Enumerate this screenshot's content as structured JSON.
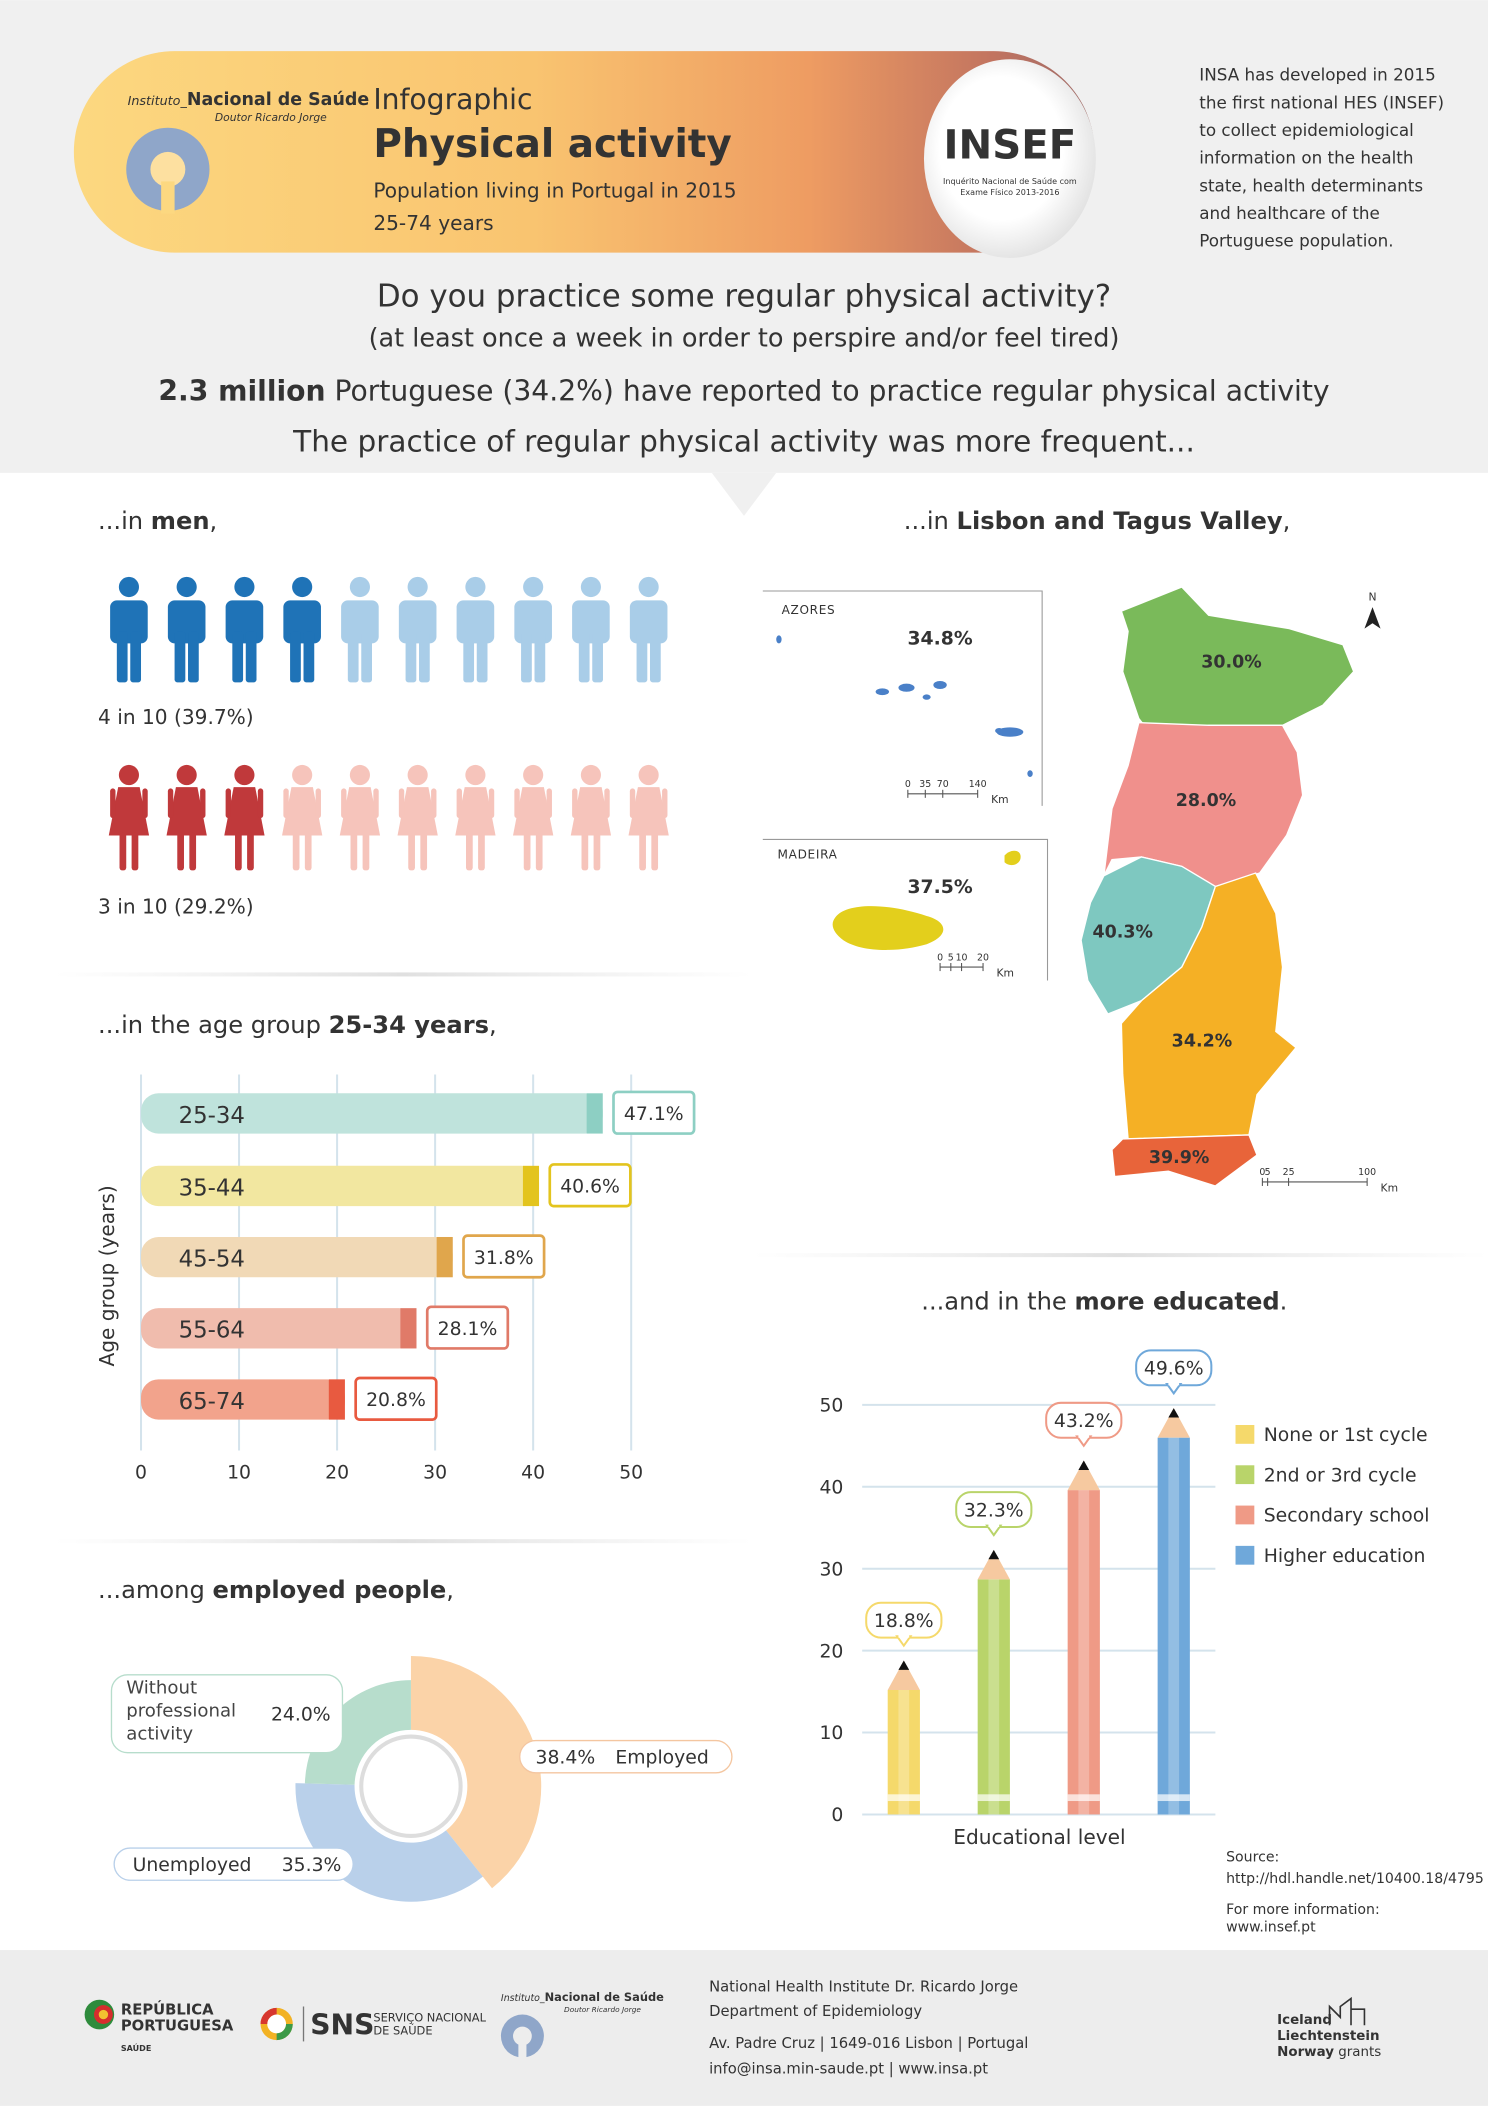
{
  "header": {
    "institute_prefix": "Instituto_",
    "institute_name": "Nacional de Saúde",
    "institute_sub": "Doutor Ricardo Jorge",
    "kicker": "Infographic",
    "title": "Physical activity",
    "subtitle_lines": [
      "Population living in Portugal in 2015",
      "25-74 years"
    ],
    "insef_logo": "INSEF",
    "insef_caption_lines": [
      "Inquérito Nacional de Saúde com",
      "Exame Físico 2013-2016"
    ],
    "side_note_lines": [
      "INSA has developed in 2015",
      "the first national HES (INSEF)",
      "to collect epidemiological",
      "information on the health",
      "state, health determinants",
      "and healthcare of the",
      "Portuguese population."
    ]
  },
  "question": {
    "title": "Do you practice some regular physical activity?",
    "subtitle": "(at least once a week in order to perspire and/or feel tired)",
    "result_bold": "2.3 million",
    "result_rest": "Portuguese (34.2%) have reported to practice regular physical activity",
    "lead": "The practice of regular physical activity was more frequent..."
  },
  "chart_data": [
    {
      "type": "pictogram",
      "heading": {
        "pre": "...in",
        "bold": "men",
        "post": ","
      },
      "rows": [
        {
          "icon": "man",
          "filled": 4,
          "total": 10,
          "percent": 39.7,
          "value_label": "4 in 10 (39.7%)",
          "color": "#1f73b7",
          "light_color": "#a9cde8"
        },
        {
          "icon": "woman",
          "filled": 3,
          "total": 10,
          "percent": 29.2,
          "value_label": "3 in 10 (29.2%)",
          "color": "#c0393b",
          "light_color": "#f6c4bb"
        }
      ]
    },
    {
      "type": "map",
      "heading": {
        "pre": "...in",
        "bold": "Lisbon and Tagus Valley",
        "post": ","
      },
      "insets": [
        {
          "name": "AZORES",
          "value": 34.8,
          "value_label": "34.8%",
          "color": "#4a80c8",
          "scale_ticks": [
            0,
            35,
            70,
            140
          ]
        },
        {
          "name": "MADEIRA",
          "value": 37.5,
          "value_label": "37.5%",
          "color": "#e3cf1c",
          "scale_ticks": [
            0,
            5,
            10,
            20
          ]
        }
      ],
      "mainland": [
        {
          "value": 30,
          "value_label": "30.0%",
          "color": "#7aba5a"
        },
        {
          "value": 28,
          "value_label": "28.0%",
          "color": "#f0908c"
        },
        {
          "value": 40.3,
          "value_label": "40.3%",
          "color": "#7ec8c0"
        },
        {
          "value": 34.2,
          "value_label": "34.2%",
          "color": "#f5b025"
        },
        {
          "value": 39.9,
          "value_label": "39.9%",
          "color": "#e8643a"
        }
      ],
      "mainland_scale_ticks": [
        0,
        5,
        25,
        100
      ],
      "scale_unit": "Km",
      "north_label": "N"
    },
    {
      "type": "bar",
      "orientation": "horizontal",
      "heading": {
        "pre": "...in the age group",
        "bold": "25-34 years",
        "post": ","
      },
      "categories": [
        "25-34",
        "35-44",
        "45-54",
        "55-64",
        "65-74"
      ],
      "values": [
        47.1,
        40.6,
        31.8,
        28.1,
        20.8
      ],
      "value_labels": [
        "47.1%",
        "40.6%",
        "31.8%",
        "28.1%",
        "20.8%"
      ],
      "colors": [
        "#bfe3dc",
        "#f2e7a0",
        "#f1d9b6",
        "#f0bcad",
        "#f2a38c"
      ],
      "edge_colors": [
        "#8dcfc3",
        "#e3c41e",
        "#e0a64c",
        "#e07a68",
        "#e85a40"
      ],
      "xlim": [
        0,
        55
      ],
      "xticks": [
        0,
        10,
        20,
        30,
        40,
        50
      ],
      "ylabel": "Age group (years)",
      "grid": true
    },
    {
      "type": "pie",
      "heading": {
        "pre": "...among",
        "bold": "employed people",
        "post": ","
      },
      "categories": [
        "Employed",
        "Unemployed",
        "Without professional activity"
      ],
      "values": [
        38.4,
        35.3,
        24.0
      ],
      "value_labels": [
        "38.4%",
        "35.3%",
        "24.0%"
      ],
      "colors": [
        "#fbd3a8",
        "#b9d0ea",
        "#b7ddcc"
      ]
    },
    {
      "type": "bar",
      "orientation": "vertical",
      "style": "pencil",
      "heading": {
        "pre": "...and in the",
        "bold": "more educated",
        "post": "."
      },
      "series": [
        {
          "name": "None or 1st cycle",
          "color": "#f5d96b",
          "values": [
            18.8
          ],
          "value_labels": [
            "18.8%"
          ]
        },
        {
          "name": "2nd or 3rd cycle",
          "color": "#b9d46a",
          "values": [
            32.3
          ],
          "value_labels": [
            "32.3%"
          ]
        },
        {
          "name": "Secondary school",
          "color": "#ef9a86",
          "values": [
            43.2
          ],
          "value_labels": [
            "43.2%"
          ]
        },
        {
          "name": "Higher education",
          "color": "#6fa8da",
          "values": [
            49.6
          ],
          "value_labels": [
            "49.6%"
          ]
        }
      ],
      "ylim": [
        0,
        50
      ],
      "yticks": [
        0,
        10,
        20,
        30,
        40,
        50
      ],
      "xlabel": "Educational level",
      "grid": true,
      "legend": "right"
    }
  ],
  "source": {
    "label": "Source:",
    "url": "http://hdl.handle.net/10400.18/4795",
    "more_label": "For more information:",
    "more_url": "www.insef.pt"
  },
  "footer": {
    "republica_lines": [
      "REPÚBLICA",
      "PORTUGUESA"
    ],
    "republica_sub": "SAÚDE",
    "sns": "SNS",
    "sns_lines": [
      "SERVIÇO NACIONAL",
      "DE SAÚDE"
    ],
    "insa_prefix": "Instituto_",
    "insa_name": "Nacional de Saúde",
    "insa_sub": "Doutor Ricardo Jorge",
    "address_lines": [
      "National Health Institute Dr. Ricardo Jorge",
      "Department of Epidemiology",
      "Av. Padre Cruz  |  1649-016  Lisbon  |  Portugal",
      "info@insa.min-saude.pt  |  www.insa.pt"
    ],
    "grants_lines": [
      "Iceland",
      "Liechtenstein"
    ],
    "grants_bold": "Norway",
    "grants_rest": "grants"
  }
}
